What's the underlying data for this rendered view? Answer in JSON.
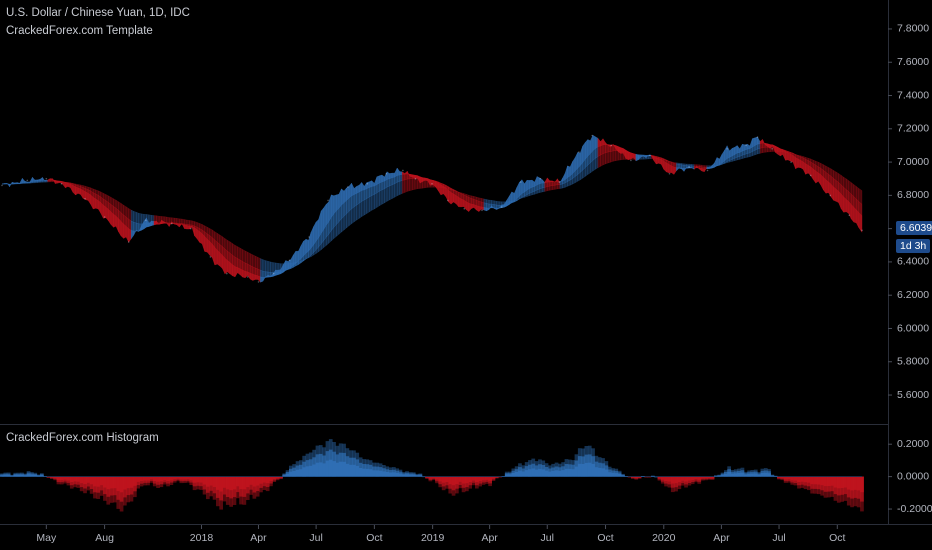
{
  "header": {
    "symbol_title": "U.S. Dollar / Chinese Yuan, 1D, IDC",
    "template_label": "CrackedForex.com Template",
    "histogram_label": "CrackedForex.com Histogram"
  },
  "price_tag": {
    "value": "6.6039",
    "countdown": "1d 3h"
  },
  "colors": {
    "background": "#000000",
    "up": "#2f6fb5",
    "down": "#c0141e",
    "tag": "#1e4b8c",
    "axis_text": "#b2b5be",
    "divider": "#2a2e39"
  },
  "chart_data": [
    {
      "type": "area",
      "title": "",
      "ylim": [
        5.45,
        7.95
      ],
      "y_ticks": [
        "7.8000",
        "7.6000",
        "7.4000",
        "7.2000",
        "7.0000",
        "6.8000",
        "6.6000",
        "6.4000",
        "6.2000",
        "6.0000",
        "5.8000",
        "5.6000"
      ],
      "x_labels": [
        "May",
        "Aug",
        "2018",
        "Apr",
        "Jul",
        "Oct",
        "2019",
        "Apr",
        "Jul",
        "Oct",
        "2020",
        "Apr",
        "Jul",
        "Oct"
      ],
      "x_label_dates": [
        "2017-05-01",
        "2017-08-01",
        "2018-01-01",
        "2018-04-01",
        "2018-07-01",
        "2018-10-01",
        "2019-01-01",
        "2019-04-01",
        "2019-07-01",
        "2019-10-01",
        "2020-01-01",
        "2020-04-01",
        "2020-07-01",
        "2020-10-01"
      ],
      "series": [
        {
          "dates": [
            "2017-02-20",
            "2017-04-01",
            "2017-05-01",
            "2017-05-25",
            "2017-07-01",
            "2017-08-01",
            "2017-09-08",
            "2017-10-05",
            "2017-11-15",
            "2017-12-15",
            "2018-01-15",
            "2018-02-10",
            "2018-03-15",
            "2018-04-01",
            "2018-04-25",
            "2018-05-20",
            "2018-06-20",
            "2018-07-20",
            "2018-08-20",
            "2018-09-20",
            "2018-10-20",
            "2018-11-15",
            "2018-12-05",
            "2018-12-31",
            "2019-01-25",
            "2019-02-20",
            "2019-03-20",
            "2019-04-20",
            "2019-05-20",
            "2019-06-20",
            "2019-07-20",
            "2019-08-20",
            "2019-09-10",
            "2019-10-10",
            "2019-11-10",
            "2019-12-10",
            "2020-01-10",
            "2020-02-10",
            "2020-03-10",
            "2020-04-10",
            "2020-05-10",
            "2020-05-28",
            "2020-06-20",
            "2020-07-20",
            "2020-08-20",
            "2020-09-20",
            "2020-10-20",
            "2020-11-09"
          ],
          "values": [
            6.86,
            6.89,
            6.9,
            6.87,
            6.78,
            6.67,
            6.52,
            6.65,
            6.63,
            6.6,
            6.43,
            6.33,
            6.31,
            6.28,
            6.33,
            6.41,
            6.55,
            6.77,
            6.85,
            6.87,
            6.93,
            6.95,
            6.9,
            6.87,
            6.77,
            6.72,
            6.71,
            6.73,
            6.88,
            6.9,
            6.88,
            7.06,
            7.16,
            7.1,
            7.01,
            7.04,
            6.93,
            6.97,
            6.95,
            7.08,
            7.1,
            7.15,
            7.08,
            7.0,
            6.92,
            6.8,
            6.68,
            6.59
          ]
        }
      ]
    },
    {
      "type": "bar",
      "title": "",
      "ylim": [
        -0.28,
        0.3
      ],
      "y_ticks": [
        "0.2000",
        "0.0000",
        "-0.2000"
      ],
      "series": [
        {
          "dates": [
            "2017-02-20",
            "2017-04-15",
            "2017-05-01",
            "2017-05-25",
            "2017-06-20",
            "2017-08-01",
            "2017-09-01",
            "2017-10-01",
            "2017-11-01",
            "2017-12-01",
            "2018-01-01",
            "2018-02-01",
            "2018-03-10",
            "2018-04-10",
            "2018-05-01",
            "2018-05-20",
            "2018-06-20",
            "2018-07-20",
            "2018-08-15",
            "2018-09-15",
            "2018-10-15",
            "2018-11-15",
            "2018-12-10",
            "2019-01-01",
            "2019-02-01",
            "2019-03-01",
            "2019-04-01",
            "2019-05-10",
            "2019-06-10",
            "2019-07-10",
            "2019-08-10",
            "2019-09-01",
            "2019-09-25",
            "2019-10-20",
            "2019-11-15",
            "2019-12-15",
            "2020-01-15",
            "2020-02-15",
            "2020-03-15",
            "2020-04-15",
            "2020-05-15",
            "2020-06-15",
            "2020-07-01",
            "2020-08-01",
            "2020-09-01",
            "2020-10-01",
            "2020-11-09"
          ],
          "values": [
            0.02,
            0.03,
            0.0,
            -0.05,
            -0.08,
            -0.16,
            -0.22,
            -0.05,
            -0.07,
            -0.03,
            -0.1,
            -0.2,
            -0.17,
            -0.1,
            -0.03,
            0.06,
            0.16,
            0.24,
            0.21,
            0.12,
            0.08,
            0.04,
            0.02,
            -0.03,
            -0.12,
            -0.08,
            -0.05,
            0.06,
            0.12,
            0.08,
            0.12,
            0.22,
            0.12,
            0.04,
            -0.02,
            0.01,
            -0.1,
            -0.05,
            -0.02,
            0.06,
            0.04,
            0.05,
            -0.02,
            -0.07,
            -0.12,
            -0.16,
            -0.22
          ]
        }
      ]
    }
  ]
}
